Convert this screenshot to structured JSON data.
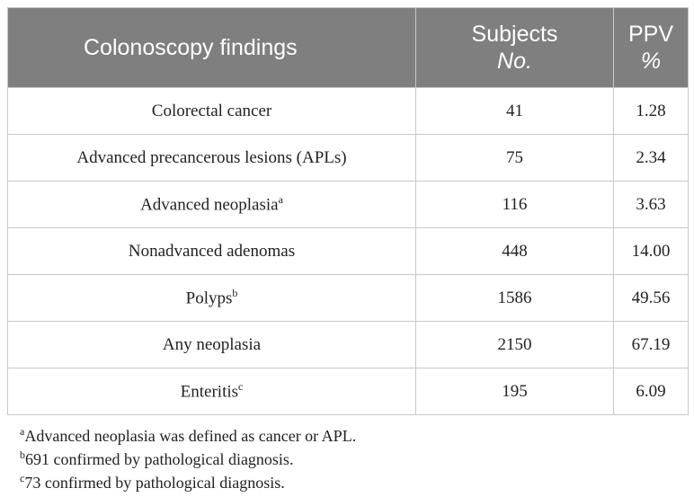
{
  "table": {
    "header": [
      {
        "line1": "Colonoscopy findings"
      },
      {
        "line1": "Subjects",
        "line2": "No."
      },
      {
        "line1": "PPV",
        "line2": "%"
      }
    ],
    "rows": [
      {
        "label": "Colorectal cancer",
        "subjects": "41",
        "ppv": "1.28"
      },
      {
        "label": "Advanced precancerous lesions (APLs)",
        "subjects": "75",
        "ppv": "2.34"
      },
      {
        "label": "Advanced neoplasia",
        "sup": "a",
        "subjects": "116",
        "ppv": "3.63"
      },
      {
        "label": "Nonadvanced adenomas",
        "subjects": "448",
        "ppv": "14.00"
      },
      {
        "label": "Polyps",
        "sup": "b",
        "subjects": "1586",
        "ppv": "49.56"
      },
      {
        "label": "Any neoplasia",
        "subjects": "2150",
        "ppv": "67.19"
      },
      {
        "label": "Enteritis",
        "sup": "c",
        "subjects": "195",
        "ppv": "6.09"
      }
    ]
  },
  "footnotes": [
    {
      "mark": "a",
      "text": "Advanced neoplasia was defined as cancer or APL."
    },
    {
      "mark": "b",
      "text": "691 confirmed by pathological diagnosis."
    },
    {
      "mark": "c",
      "text": "73 confirmed by pathological diagnosis."
    }
  ]
}
